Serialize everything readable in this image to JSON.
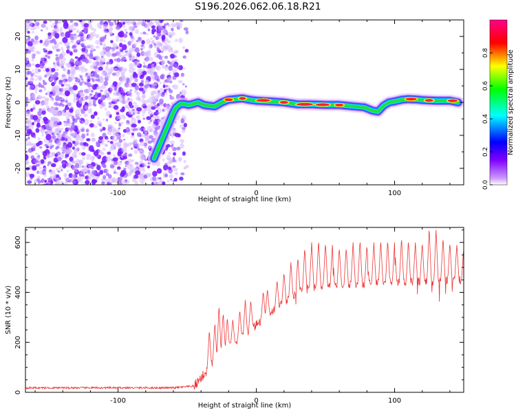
{
  "title": "S196.2026.062.06.18.R21",
  "chart_data": [
    {
      "type": "heatmap",
      "xlabel": "Height of straight line (km)",
      "ylabel": "Frequency (Hz)",
      "xlim": [
        -167,
        150
      ],
      "ylim": [
        -25,
        25
      ],
      "xticks": [
        -100,
        0,
        100
      ],
      "yticks": [
        -20,
        -10,
        0,
        10,
        20
      ],
      "noise_region_x": [
        -167,
        -55
      ],
      "ridge": [
        [
          -74,
          -17
        ],
        [
          -72,
          -15
        ],
        [
          -70,
          -13
        ],
        [
          -68,
          -11
        ],
        [
          -66,
          -9
        ],
        [
          -64,
          -7
        ],
        [
          -62,
          -5
        ],
        [
          -60,
          -3
        ],
        [
          -58,
          -1.5
        ],
        [
          -55,
          -0.5
        ],
        [
          -52,
          -0.5
        ],
        [
          -49,
          -0.8
        ],
        [
          -46,
          -0.5
        ],
        [
          -42,
          0
        ],
        [
          -38,
          -0.8
        ],
        [
          -35,
          -1
        ],
        [
          -30,
          -1.2
        ],
        [
          -25,
          0
        ],
        [
          -20,
          0.8
        ],
        [
          -15,
          1
        ],
        [
          -10,
          1.2
        ],
        [
          -5,
          0.8
        ],
        [
          0,
          0.5
        ],
        [
          10,
          0.3
        ],
        [
          20,
          0
        ],
        [
          30,
          -0.6
        ],
        [
          40,
          -0.6
        ],
        [
          50,
          -0.8
        ],
        [
          60,
          -0.8
        ],
        [
          70,
          -1.2
        ],
        [
          78,
          -1.5
        ],
        [
          84,
          -2.5
        ],
        [
          88,
          -2.8
        ],
        [
          92,
          -1
        ],
        [
          96,
          0
        ],
        [
          100,
          0.3
        ],
        [
          105,
          0.8
        ],
        [
          110,
          1
        ],
        [
          115,
          0.9
        ],
        [
          120,
          0.7
        ],
        [
          130,
          0.5
        ],
        [
          140,
          0.5
        ],
        [
          146,
          0
        ]
      ],
      "colorbar": {
        "label": "Normalized spectral amplitude",
        "range": [
          0,
          1
        ],
        "ticks": [
          "0.0",
          "0.2",
          "0.4",
          "0.6",
          "0.8"
        ],
        "colors": [
          "#ffffff",
          "#cc99ff",
          "#8000ff",
          "#0000ff",
          "#00ffff",
          "#00ff00",
          "#ffff00",
          "#ff0000",
          "#ff0088"
        ]
      }
    },
    {
      "type": "line",
      "xlabel": "Height of straight line (km)",
      "ylabel": "SNR (10 * v/v)",
      "xlim": [
        -167,
        150
      ],
      "ylim": [
        0,
        660
      ],
      "xticks": [
        -100,
        0,
        100
      ],
      "yticks": [
        0,
        200,
        400,
        600
      ],
      "color": "#ee3333",
      "trend": [
        [
          -167,
          18
        ],
        [
          -60,
          18
        ],
        [
          -45,
          25
        ],
        [
          -35,
          90
        ],
        [
          -25,
          160
        ],
        [
          -10,
          220
        ],
        [
          0,
          270
        ],
        [
          10,
          320
        ],
        [
          20,
          360
        ],
        [
          30,
          400
        ],
        [
          40,
          420
        ],
        [
          60,
          430
        ],
        [
          80,
          435
        ],
        [
          100,
          440
        ],
        [
          120,
          445
        ],
        [
          140,
          445
        ],
        [
          150,
          450
        ]
      ],
      "peaks": [
        [
          -34,
          250
        ],
        [
          -30,
          280
        ],
        [
          -27,
          350
        ],
        [
          -24,
          320
        ],
        [
          -21,
          300
        ],
        [
          -17,
          290
        ],
        [
          -12,
          330
        ],
        [
          -8,
          370
        ],
        [
          -4,
          370
        ],
        [
          5,
          405
        ],
        [
          8,
          415
        ],
        [
          15,
          450
        ],
        [
          20,
          480
        ],
        [
          25,
          520
        ],
        [
          30,
          540
        ],
        [
          35,
          580
        ],
        [
          40,
          600
        ],
        [
          45,
          610
        ],
        [
          50,
          600
        ],
        [
          55,
          590
        ],
        [
          60,
          580
        ],
        [
          65,
          580
        ],
        [
          70,
          600
        ],
        [
          75,
          610
        ],
        [
          80,
          590
        ],
        [
          85,
          600
        ],
        [
          90,
          610
        ],
        [
          95,
          610
        ],
        [
          100,
          600
        ],
        [
          105,
          620
        ],
        [
          110,
          610
        ],
        [
          115,
          600
        ],
        [
          120,
          600
        ],
        [
          125,
          660
        ],
        [
          130,
          650
        ],
        [
          135,
          620
        ],
        [
          140,
          600
        ],
        [
          145,
          590
        ],
        [
          150,
          580
        ]
      ]
    }
  ]
}
